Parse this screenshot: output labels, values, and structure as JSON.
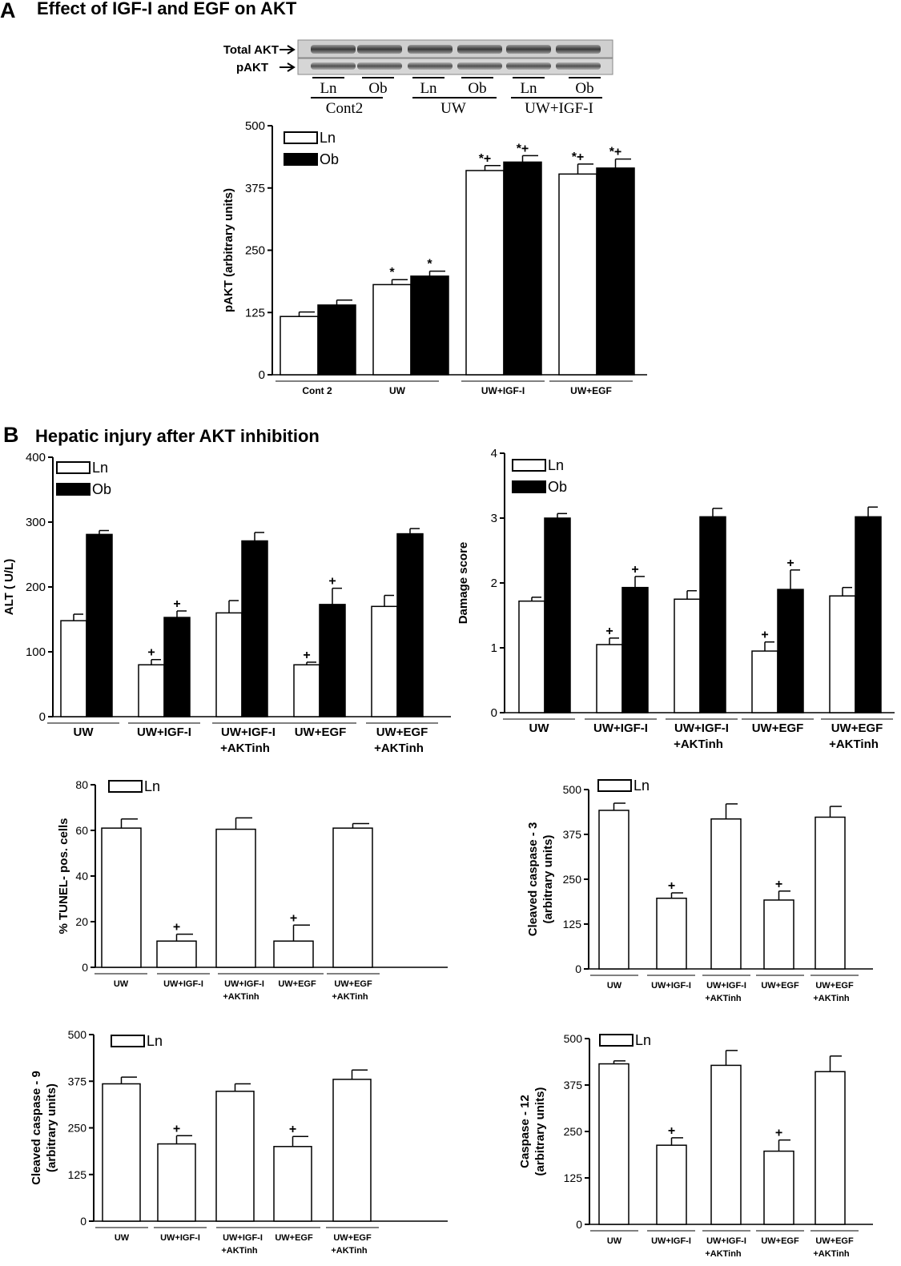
{
  "panel_a": {
    "letter": "A",
    "heading": "Effect of IGF-I and EGF on AKT",
    "blot": {
      "row_labels": [
        "Total AKT",
        "pAKT"
      ],
      "lane_labels": [
        "Ln",
        "Ob",
        "Ln",
        "Ob",
        "Ln",
        "Ob"
      ],
      "group_labels": [
        "Cont2",
        "UW",
        "UW+IGF-I"
      ]
    }
  },
  "panel_b": {
    "letter": "B",
    "heading": "Hepatic injury after AKT inhibition"
  },
  "chart_data": [
    {
      "id": "pakt",
      "type": "bar",
      "ylabel": "pAKT (arbitrary units)",
      "ylim": [
        0,
        500
      ],
      "yticks": [
        "0",
        "125",
        "250",
        "375",
        "500"
      ],
      "legend": [
        "Ln",
        "Ob"
      ],
      "categories": [
        "Cont 2",
        "UW",
        "UW+IGF-I",
        "UW+EGF"
      ],
      "series": [
        {
          "name": "Ln",
          "color": "#ffffff",
          "values": [
            117,
            181,
            410,
            403
          ],
          "errors": [
            9,
            10,
            10,
            20
          ],
          "marks": [
            "",
            "*",
            "*+",
            "*+"
          ]
        },
        {
          "name": "Ob",
          "color": "#000000",
          "values": [
            140,
            198,
            427,
            415
          ],
          "errors": [
            10,
            10,
            13,
            18
          ],
          "marks": [
            "",
            "*",
            "*+",
            "*+"
          ]
        }
      ]
    },
    {
      "id": "alt",
      "type": "bar",
      "ylabel": "ALT ( U/L)",
      "ylim": [
        0,
        400
      ],
      "yticks": [
        "0",
        "100",
        "200",
        "300",
        "400"
      ],
      "legend": [
        "Ln",
        "Ob"
      ],
      "categories": [
        [
          "UW"
        ],
        [
          "UW+IGF-I"
        ],
        [
          "UW+IGF-I",
          "+AKTinh"
        ],
        [
          "UW+EGF"
        ],
        [
          "UW+EGF",
          "+AKTinh"
        ]
      ],
      "series": [
        {
          "name": "Ln",
          "color": "#ffffff",
          "values": [
            148,
            80,
            160,
            80,
            170
          ],
          "errors": [
            10,
            8,
            19,
            4,
            17
          ],
          "marks": [
            "",
            "+",
            "",
            "+",
            ""
          ]
        },
        {
          "name": "Ob",
          "color": "#000000",
          "values": [
            281,
            153,
            271,
            173,
            282
          ],
          "errors": [
            6,
            10,
            13,
            25,
            8
          ],
          "marks": [
            "",
            "+",
            "",
            "+",
            ""
          ]
        }
      ]
    },
    {
      "id": "damage",
      "type": "bar",
      "ylabel": "Damage score",
      "ylim": [
        0,
        4
      ],
      "yticks": [
        "0",
        "1",
        "2",
        "3",
        "4"
      ],
      "legend": [
        "Ln",
        "Ob"
      ],
      "categories": [
        [
          "UW"
        ],
        [
          "UW+IGF-I"
        ],
        [
          "UW+IGF-I",
          "+AKTinh"
        ],
        [
          "UW+EGF"
        ],
        [
          "UW+EGF",
          "+AKTinh"
        ]
      ],
      "series": [
        {
          "name": "Ln",
          "color": "#ffffff",
          "values": [
            1.72,
            1.05,
            1.75,
            0.95,
            1.8
          ],
          "errors": [
            0.06,
            0.1,
            0.13,
            0.14,
            0.13
          ],
          "marks": [
            "",
            "+",
            "",
            "+",
            ""
          ]
        },
        {
          "name": "Ob",
          "color": "#000000",
          "values": [
            3.0,
            1.93,
            3.02,
            1.9,
            3.02
          ],
          "errors": [
            0.07,
            0.17,
            0.13,
            0.3,
            0.15
          ],
          "marks": [
            "",
            "+",
            "",
            "+",
            ""
          ]
        }
      ]
    },
    {
      "id": "tunel",
      "type": "bar",
      "ylabel": "% TUNEL- pos. cells",
      "ylim": [
        0,
        80
      ],
      "yticks": [
        "0",
        "20",
        "40",
        "60",
        "80"
      ],
      "legend": [
        "Ln"
      ],
      "categories": [
        [
          "UW"
        ],
        [
          "UW+IGF-I"
        ],
        [
          "UW+IGF-I",
          "+AKTinh"
        ],
        [
          "UW+EGF"
        ],
        [
          "UW+EGF",
          "+AKTinh"
        ]
      ],
      "series": [
        {
          "name": "Ln",
          "color": "#ffffff",
          "values": [
            61,
            11.5,
            60.5,
            11.5,
            61
          ],
          "errors": [
            4,
            3,
            5,
            7,
            2
          ],
          "marks": [
            "",
            "+",
            "",
            "+",
            ""
          ]
        }
      ]
    },
    {
      "id": "casp3",
      "type": "bar",
      "ylabel": [
        "Cleaved caspase - 3",
        "(arbitrary units)"
      ],
      "ylim": [
        0,
        500
      ],
      "yticks": [
        "0",
        "125",
        "250",
        "375",
        "500"
      ],
      "legend": [
        "Ln"
      ],
      "categories": [
        [
          "UW"
        ],
        [
          "UW+IGF-I"
        ],
        [
          "UW+IGF-I",
          "+AKTinh"
        ],
        [
          "UW+EGF"
        ],
        [
          "UW+EGF",
          "+AKTinh"
        ]
      ],
      "series": [
        {
          "name": "Ln",
          "color": "#ffffff",
          "values": [
            442,
            197,
            418,
            192,
            423
          ],
          "errors": [
            20,
            15,
            42,
            25,
            30
          ],
          "marks": [
            "",
            "+",
            "",
            "+",
            ""
          ]
        }
      ]
    },
    {
      "id": "casp9",
      "type": "bar",
      "ylabel": [
        "Cleaved caspase - 9",
        "(arbitrary units)"
      ],
      "ylim": [
        0,
        500
      ],
      "yticks": [
        "0",
        "125",
        "250",
        "375",
        "500"
      ],
      "legend": [
        "Ln"
      ],
      "categories": [
        [
          "UW"
        ],
        [
          "UW+IGF-I"
        ],
        [
          "UW+IGF-I",
          "+AKTinh"
        ],
        [
          "UW+EGF"
        ],
        [
          "UW+EGF",
          "+AKTinh"
        ]
      ],
      "series": [
        {
          "name": "Ln",
          "color": "#ffffff",
          "values": [
            368,
            207,
            348,
            200,
            380
          ],
          "errors": [
            18,
            22,
            20,
            27,
            25
          ],
          "marks": [
            "",
            "+",
            "",
            "+",
            ""
          ]
        }
      ]
    },
    {
      "id": "casp12",
      "type": "bar",
      "ylabel": [
        "Caspase - 12",
        "(arbitrary units)"
      ],
      "ylim": [
        0,
        500
      ],
      "yticks": [
        "0",
        "125",
        "250",
        "375",
        "500"
      ],
      "legend": [
        "Ln"
      ],
      "categories": [
        [
          "UW"
        ],
        [
          "UW+IGF-I"
        ],
        [
          "UW+IGF-I",
          "+AKTinh"
        ],
        [
          "UW+EGF"
        ],
        [
          "UW+EGF",
          "+AKTinh"
        ]
      ],
      "series": [
        {
          "name": "Ln",
          "color": "#ffffff",
          "values": [
            432,
            213,
            428,
            197,
            411
          ],
          "errors": [
            8,
            20,
            40,
            30,
            42
          ],
          "marks": [
            "",
            "+",
            "",
            "+",
            ""
          ]
        }
      ]
    }
  ]
}
